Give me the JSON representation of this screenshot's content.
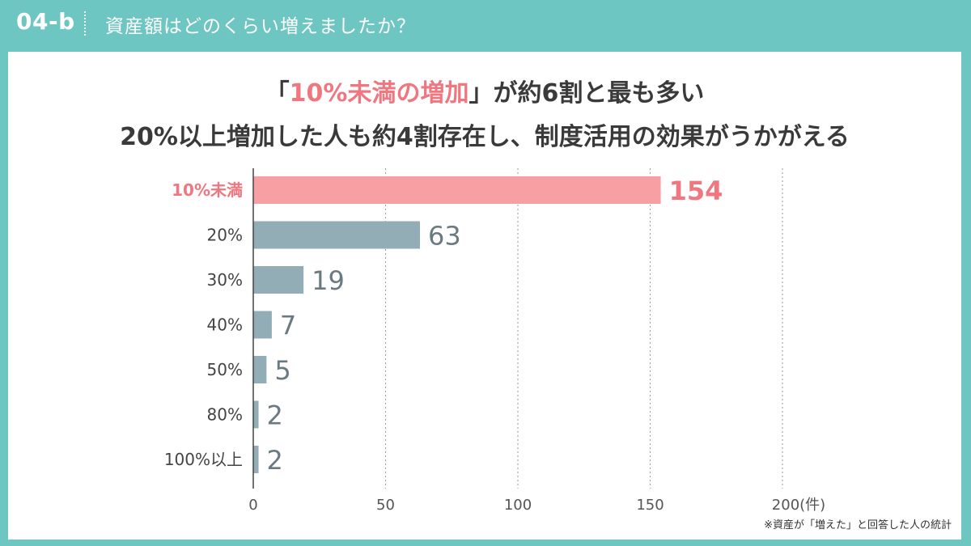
{
  "header": {
    "section_id": "04-b",
    "title": "資産額はどのくらい増えましたか？"
  },
  "headline": {
    "line1_prefix": "「",
    "line1_highlight": "10%未満の増加",
    "line1_suffix": "」が約6割と最も多い",
    "line2": "20%以上増加した人も約4割存在し、制度活用の効果がうかがえる"
  },
  "note": "※資産が「増えた」と回答した人の統計",
  "colors": {
    "background": "#6ec6c2",
    "highlight": "#f0777f",
    "highlight_bar": "#f7a0a4",
    "bar": "#93adb6",
    "value_text": "#6b7a80"
  },
  "chart_data": {
    "type": "bar",
    "orientation": "horizontal",
    "categories": [
      "10%未満",
      "20%",
      "30%",
      "40%",
      "50%",
      "80%",
      "100%以上"
    ],
    "values": [
      154,
      63,
      19,
      7,
      5,
      2,
      2
    ],
    "highlight_index": 0,
    "xlim": [
      0,
      200
    ],
    "xticks": [
      "0",
      "50",
      "100",
      "150",
      "200"
    ],
    "x_unit": "(件)",
    "grid": "vertical dotted"
  }
}
